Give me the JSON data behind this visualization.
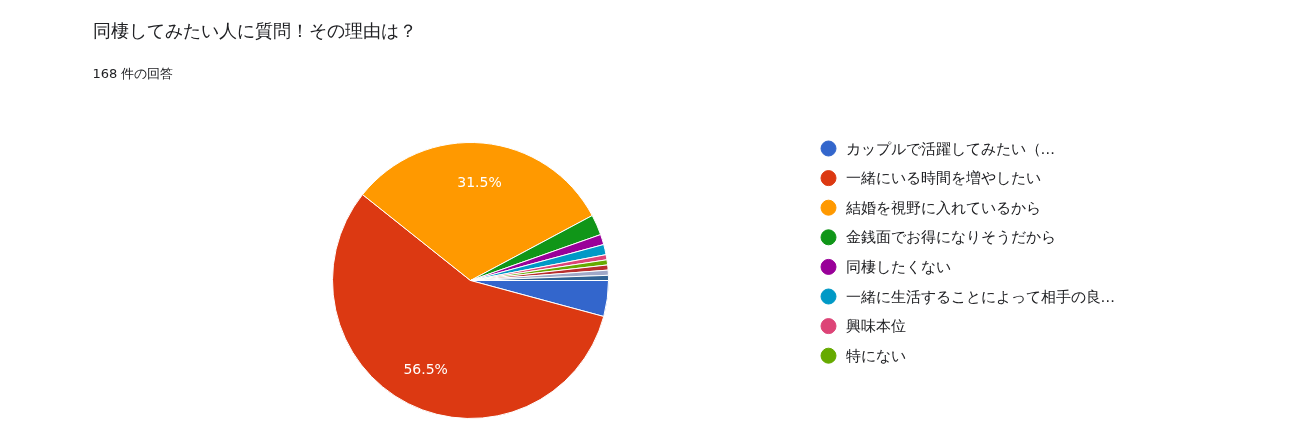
{
  "chart_data": {
    "type": "pie",
    "title": "同棲してみたい人に質問！その理由は？",
    "subtitle": "168 件の回答",
    "categories": [
      "カップルで活躍してみたい（…",
      "一緒にいる時間を増やしたい",
      "結婚を視野に入れているから",
      "金銭面でお得になりそうだから",
      "同棲したくない",
      "一緒に生活することによって相手の良…",
      "興味本位",
      "特にない",
      null,
      null,
      null
    ],
    "values": [
      4.2,
      56.5,
      31.5,
      2.4,
      1.2,
      1.2,
      0.6,
      0.6,
      0.6,
      0.6,
      0.6
    ],
    "colors": [
      "#3366cc",
      "#dc3912",
      "#ff9900",
      "#109618",
      "#990099",
      "#0099c6",
      "#dd4477",
      "#66aa00",
      "#b82e2e",
      "#9fa8c8",
      "#316395"
    ],
    "value_labels": [
      null,
      "56.5%",
      "31.5%",
      null,
      null,
      null,
      null,
      null,
      null,
      null,
      null
    ],
    "legend": "right"
  }
}
